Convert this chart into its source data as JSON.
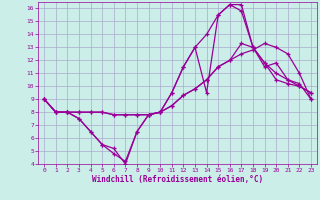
{
  "xlabel": "Windchill (Refroidissement éolien,°C)",
  "bg_color": "#cceee8",
  "grid_color": "#aaaacc",
  "line_color": "#990099",
  "xlim": [
    -0.5,
    23.5
  ],
  "ylim": [
    4,
    16.5
  ],
  "xticks": [
    0,
    1,
    2,
    3,
    4,
    5,
    6,
    7,
    8,
    9,
    10,
    11,
    12,
    13,
    14,
    15,
    16,
    17,
    18,
    19,
    20,
    21,
    22,
    23
  ],
  "yticks": [
    4,
    5,
    6,
    7,
    8,
    9,
    10,
    11,
    12,
    13,
    14,
    15,
    16
  ],
  "series": [
    [
      9,
      8,
      8,
      7.5,
      6.5,
      5.5,
      5.2,
      4.0,
      6.5,
      7.8,
      8.0,
      9.5,
      11.5,
      13.0,
      9.5,
      15.5,
      16.3,
      16.3,
      13.0,
      11.8,
      10.5,
      10.2,
      10.0,
      9.5
    ],
    [
      9,
      8,
      8,
      7.5,
      6.5,
      5.5,
      4.8,
      4.2,
      6.5,
      7.8,
      8.0,
      9.5,
      11.5,
      13.0,
      14.0,
      15.5,
      16.3,
      15.8,
      13.0,
      11.8,
      11.0,
      10.5,
      10.0,
      9.5
    ],
    [
      9,
      8,
      8,
      8.0,
      8.0,
      8.0,
      7.8,
      7.8,
      7.8,
      7.8,
      8.0,
      8.5,
      9.3,
      9.8,
      10.5,
      11.5,
      12.0,
      13.3,
      13.0,
      11.5,
      11.8,
      10.5,
      10.2,
      9.0
    ],
    [
      9,
      8,
      8,
      8.0,
      8.0,
      8.0,
      7.8,
      7.8,
      7.8,
      7.8,
      8.0,
      8.5,
      9.3,
      9.8,
      10.5,
      11.5,
      12.0,
      12.5,
      12.8,
      13.3,
      13.0,
      12.5,
      11.0,
      9.0
    ]
  ]
}
